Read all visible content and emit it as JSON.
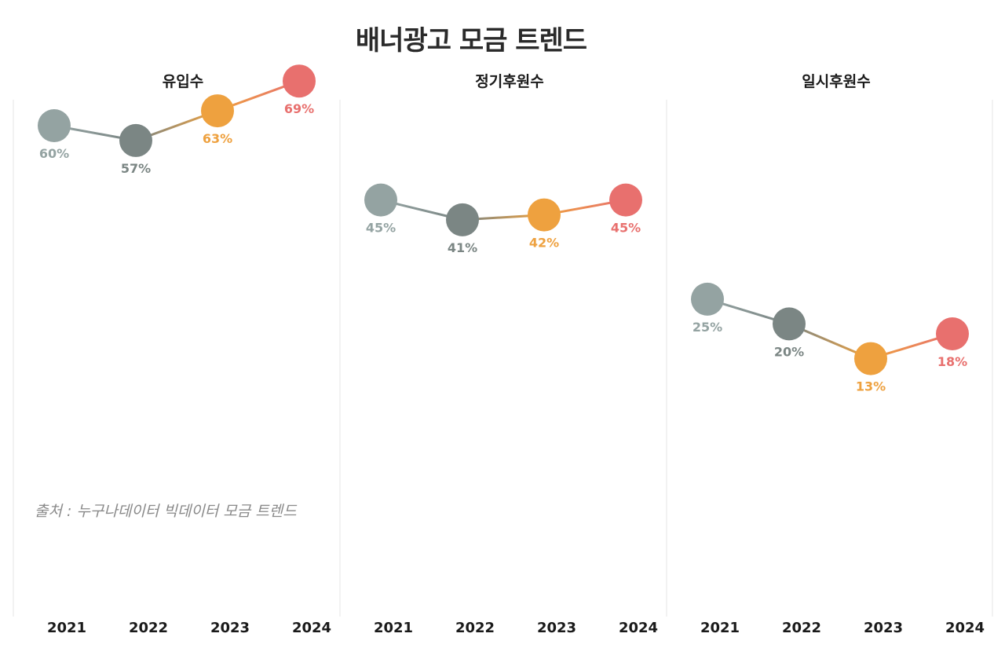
{
  "title": "배너광고 모금 트렌드",
  "source": "출처 : 누구나데이터 빅데이터 모금 트렌드",
  "colors": {
    "2021": "#94a3a2",
    "2022": "#7b8684",
    "2023": "#eea13f",
    "2024": "#e8706e"
  },
  "chart_data": [
    {
      "type": "line",
      "title": "유입수",
      "categories": [
        "2021",
        "2022",
        "2023",
        "2024"
      ],
      "values": [
        60,
        57,
        63,
        69
      ],
      "value_labels": [
        "60%",
        "57%",
        "63%",
        "69%"
      ],
      "grid": false
    },
    {
      "type": "line",
      "title": "정기후원수",
      "categories": [
        "2021",
        "2022",
        "2023",
        "2024"
      ],
      "values": [
        45,
        41,
        42,
        45
      ],
      "value_labels": [
        "45%",
        "41%",
        "42%",
        "45%"
      ],
      "grid": false
    },
    {
      "type": "line",
      "title": "일시후원수",
      "categories": [
        "2021",
        "2022",
        "2023",
        "2024"
      ],
      "values": [
        25,
        20,
        13,
        18
      ],
      "value_labels": [
        "25%",
        "20%",
        "13%",
        "18%"
      ],
      "grid": false
    }
  ]
}
